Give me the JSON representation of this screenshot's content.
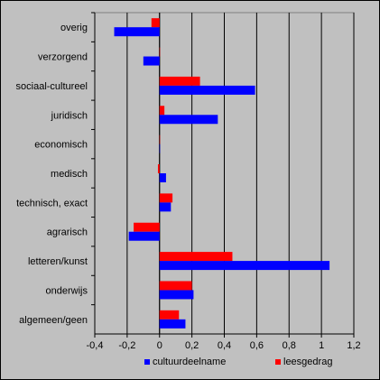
{
  "chart_data": {
    "type": "bar",
    "orientation": "horizontal",
    "categories": [
      "overig",
      "verzorgend",
      "sociaal-cultureel",
      "juridisch",
      "economisch",
      "medisch",
      "technisch, exact",
      "agrarisch",
      "letteren/kunst",
      "onderwijs",
      "algemeen/geen"
    ],
    "series": [
      {
        "name": "cultuurdeelname",
        "color": "#0000ff",
        "values": [
          -0.28,
          -0.1,
          0.59,
          0.36,
          0.0,
          0.04,
          0.07,
          -0.19,
          1.05,
          0.21,
          0.16
        ]
      },
      {
        "name": "leesgedrag",
        "color": "#ff0000",
        "values": [
          -0.05,
          0.0,
          0.25,
          0.03,
          0.0,
          -0.01,
          0.08,
          -0.16,
          0.45,
          0.2,
          0.12
        ]
      }
    ],
    "xlim": [
      -0.4,
      1.2
    ],
    "xticks": [
      "-0,4",
      "-0,2",
      "0",
      "0,2",
      "0,4",
      "0,6",
      "0,8",
      "1",
      "1,2"
    ],
    "grid": true,
    "legend_position": "bottom",
    "colors": {
      "background": "#c0c0c0",
      "plot_border": "#808080",
      "frame_border": "#000000"
    }
  }
}
